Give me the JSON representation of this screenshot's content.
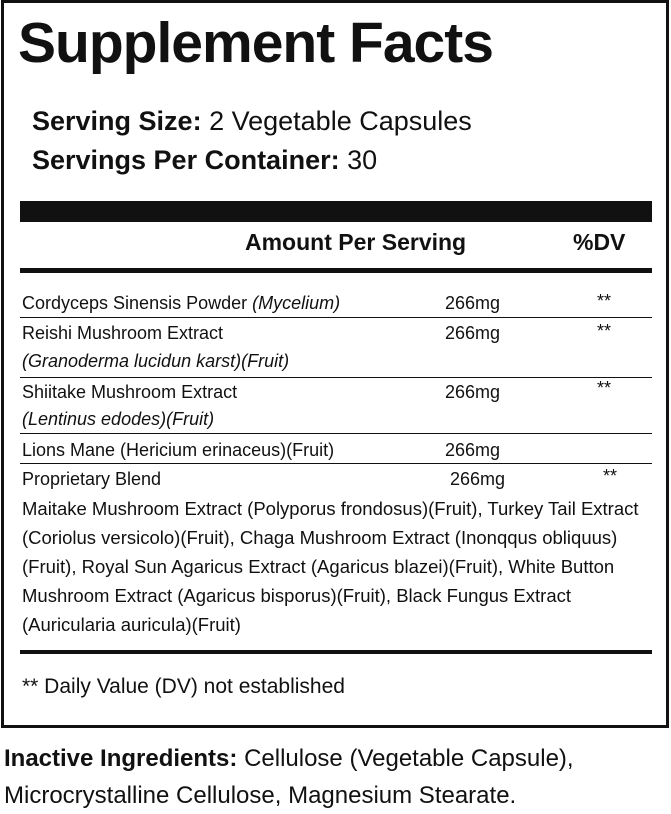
{
  "title": "Supplement Facts",
  "serving_size": {
    "label": "Serving Size:",
    "value": "2 Vegetable Capsules"
  },
  "servings_per_container": {
    "label": "Servings Per Container:",
    "value": "30"
  },
  "header": {
    "amount": "Amount Per Serving",
    "dv": "%DV"
  },
  "rows": [
    {
      "name": "Cordyceps Sinensis Powder",
      "detail": "(Mycelium)",
      "amount": "266mg",
      "dv": "**"
    },
    {
      "name": "Reishi Mushroom Extract",
      "detail": "(Granoderma lucidun karst)(Fruit)",
      "amount": "266mg",
      "dv": "**"
    },
    {
      "name": "Shiitake Mushroom Extract",
      "detail": "(Lentinus edodes)(Fruit)",
      "amount": "266mg",
      "dv": "**"
    },
    {
      "name": "Lions Mane (Hericium erinaceus)(Fruit)",
      "amount": "266mg"
    },
    {
      "name": "Proprietary Blend",
      "amount": "266mg",
      "dv": "**"
    }
  ],
  "blend": "Maitake Mushroom Extract (Polyporus frondosus)(Fruit), Turkey Tail Extract (Coriolus versicolo)(Fruit), Chaga Mushroom Extract (Inonqqus obliquus)(Fruit), Royal Sun Agaricus Extract (Agaricus blazei)(Fruit), White Button Mushroom Extract (Agaricus bisporus)(Fruit), Black Fungus Extract (Auricularia auricula)(Fruit)",
  "footnote": "** Daily Value (DV) not established",
  "inactive": {
    "label": "Inactive Ingredients:",
    "text": "Cellulose (Vegetable Capsule), Microcrystalline Cellulose, Magnesium Stearate."
  }
}
